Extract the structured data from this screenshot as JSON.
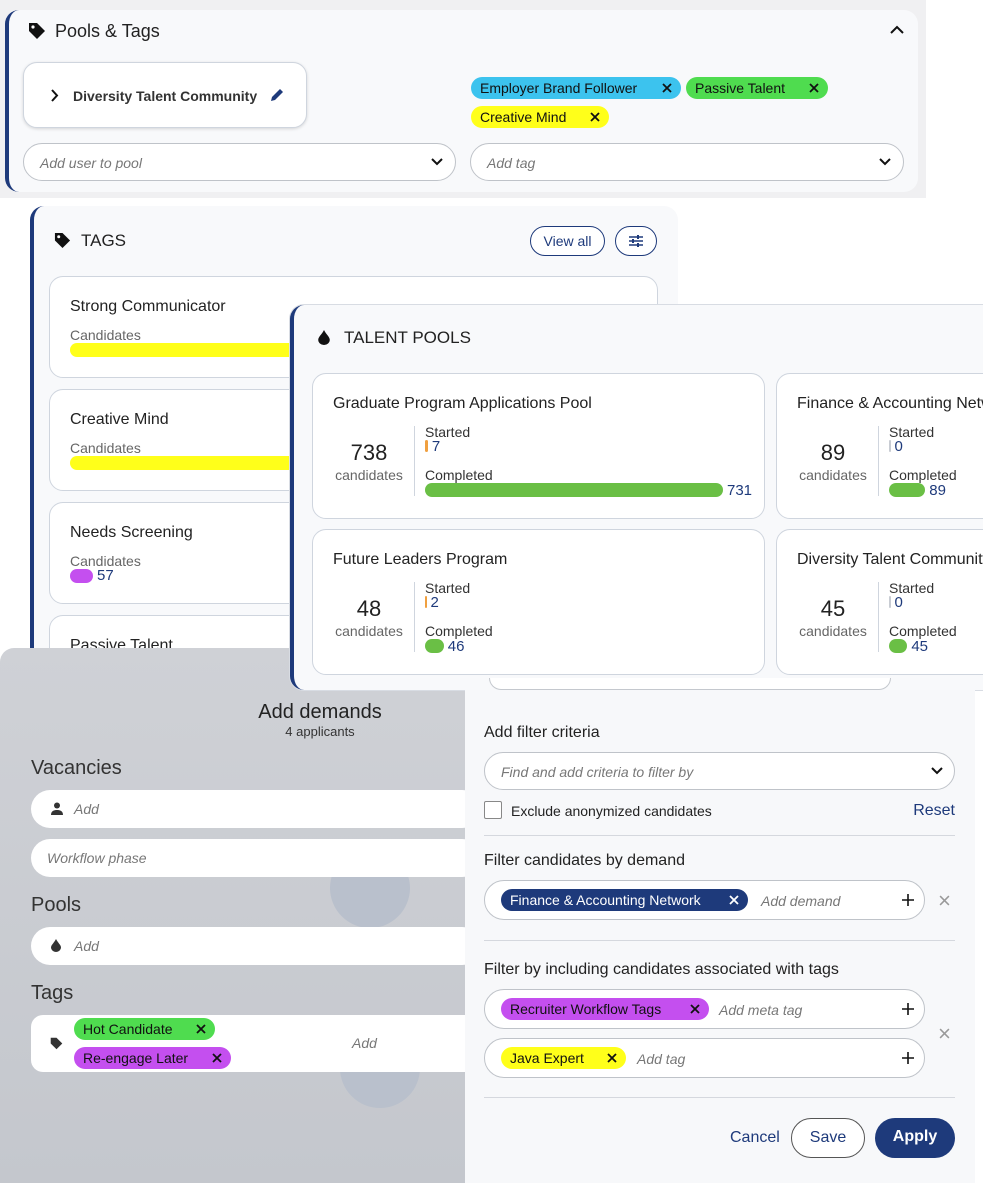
{
  "pools_and_tags": {
    "title": "Pools & Tags",
    "pool": "Diversity Talent Community",
    "tags": [
      {
        "label": "Employer Brand Follower",
        "color": "#3cc3ee"
      },
      {
        "label": "Passive Talent",
        "color": "#4fdc4f"
      },
      {
        "label": "Creative Mind",
        "color": "#ffff1a"
      }
    ],
    "pool_placeholder": "Add user to pool",
    "tag_placeholder": "Add tag"
  },
  "tags_panel": {
    "title": "TAGS",
    "view_all": "View all",
    "items": [
      {
        "name": "Strong Communicator",
        "label": "Candidates",
        "color": "#ffff1a"
      },
      {
        "name": "Creative Mind",
        "label": "Candidates",
        "color": "#ffff1a"
      },
      {
        "name": "Needs Screening",
        "label": "Candidates",
        "count": 57,
        "color": "#c44fef"
      },
      {
        "name": "Passive Talent"
      }
    ]
  },
  "talent_pools": {
    "title": "TALENT POOLS",
    "candidates_label": "candidates",
    "started_label": "Started",
    "completed_label": "Completed",
    "pools": [
      {
        "name": "Graduate Program Applications Pool",
        "total": 738,
        "started": 7,
        "completed": 731
      },
      {
        "name": "Finance & Accounting Network",
        "total": 89,
        "started": 0,
        "completed": 89
      },
      {
        "name": "Future Leaders Program",
        "total": 48,
        "started": 2,
        "completed": 46
      },
      {
        "name": "Diversity Talent Community",
        "total": 45,
        "started": 0,
        "completed": 45
      }
    ]
  },
  "add_demands": {
    "title": "Add demands",
    "subtitle": "4 applicants",
    "vacancies_label": "Vacancies",
    "vacancies_placeholder": "Add",
    "workflow_placeholder": "Workflow phase",
    "pools_label": "Pools",
    "pools_placeholder": "Add",
    "tags_label": "Tags",
    "tags": [
      {
        "label": "Hot Candidate",
        "color": "#4fdc4f"
      },
      {
        "label": "Re-engage Later",
        "color": "#c44fef"
      }
    ],
    "tags_placeholder": "Add"
  },
  "filters": {
    "criteria_label": "Add filter criteria",
    "criteria_placeholder": "Find and add criteria to filter by",
    "exclude_label": "Exclude anonymized candidates",
    "reset": "Reset",
    "demand_label": "Filter candidates by demand",
    "demand_chip": "Finance & Accounting Network",
    "demand_placeholder": "Add demand",
    "tags_label": "Filter by including candidates associated with tags",
    "meta_chip": "Recruiter Workflow Tags",
    "meta_placeholder": "Add meta tag",
    "tag_chip": "Java Expert",
    "tag_placeholder": "Add tag",
    "cancel": "Cancel",
    "save": "Save",
    "apply": "Apply"
  }
}
